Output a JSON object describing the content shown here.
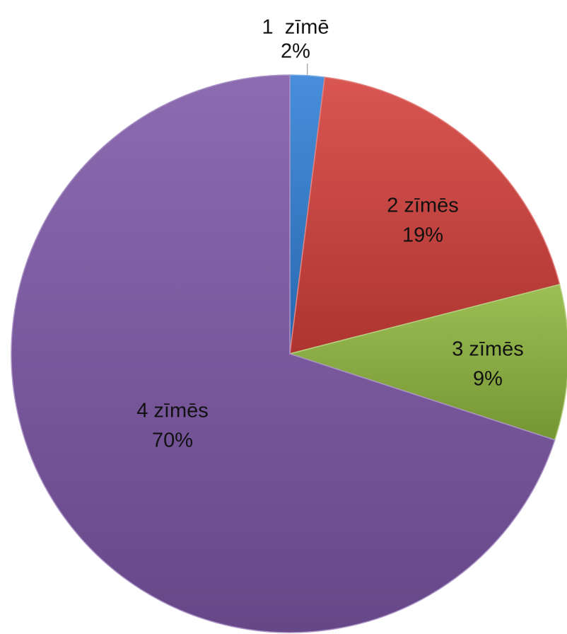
{
  "chart_data": {
    "type": "pie",
    "title": "",
    "slices": [
      {
        "label": "1  zīmē",
        "percent_label": "2%",
        "value": 2,
        "color": "#2f7fd6"
      },
      {
        "label": "2 zīmēs",
        "percent_label": "19%",
        "value": 19,
        "color": "#d43f3a"
      },
      {
        "label": "3 zīmēs",
        "percent_label": "9%",
        "value": 9,
        "color": "#8fb63e"
      },
      {
        "label": "4 zīmēs",
        "percent_label": "70%",
        "value": 70,
        "color": "#7c57a6"
      }
    ],
    "legend": "none",
    "data_labels": "category and percentage"
  }
}
